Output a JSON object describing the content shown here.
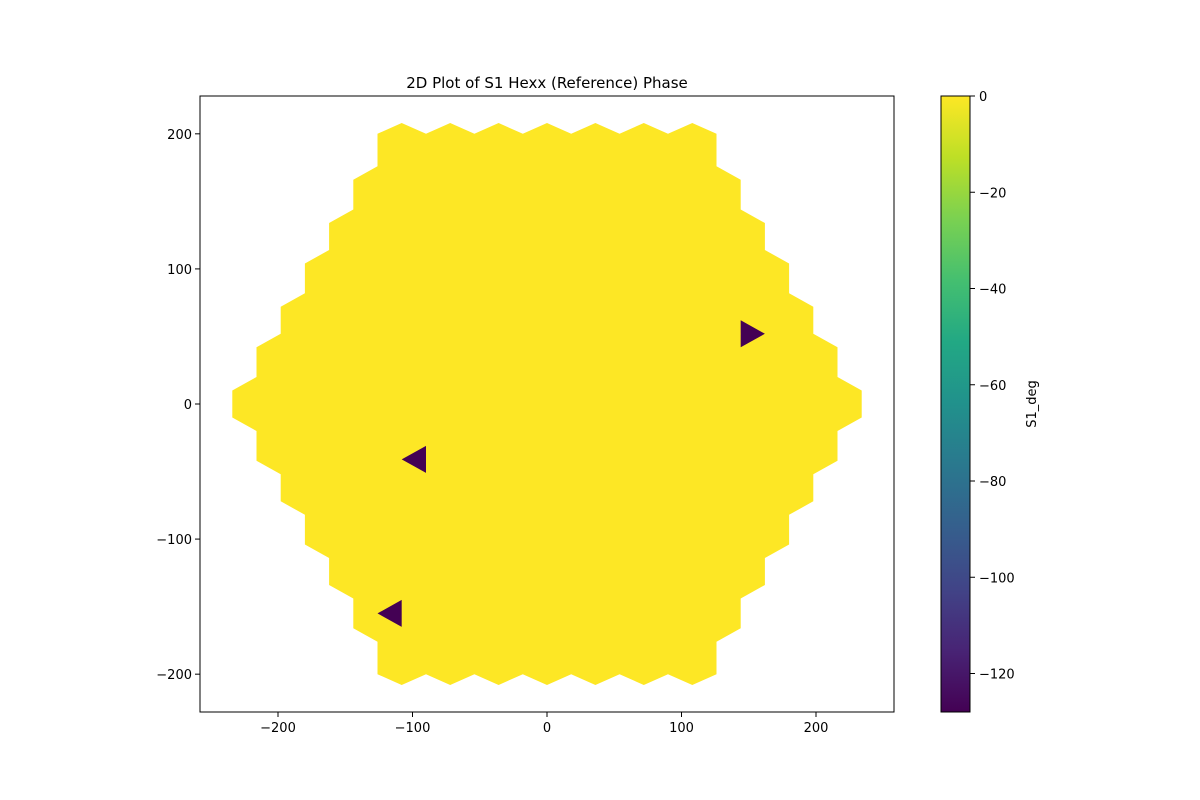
{
  "chart_data": {
    "type": "heatmap",
    "title": "2D Plot of S1 Hexx (Reference) Phase",
    "xlabel": "",
    "ylabel": "",
    "xlim": [
      -258,
      258
    ],
    "ylim": [
      -228,
      228
    ],
    "x_ticks": [
      -200,
      -100,
      0,
      100,
      200
    ],
    "y_ticks": [
      -200,
      -100,
      0,
      100,
      200
    ],
    "colorbar": {
      "label": "S1_deg",
      "range": [
        -128,
        0
      ],
      "ticks": [
        0,
        -20,
        -40,
        -60,
        -80,
        -100,
        -120
      ],
      "colormap": "viridis"
    },
    "region": {
      "shape": "hexagon of hexagonal cells",
      "value": 0,
      "color": "#fde725",
      "outline": [
        [
          -126,
          200
        ],
        [
          -108,
          208
        ],
        [
          -90,
          200
        ],
        [
          -72,
          208
        ],
        [
          -54,
          200
        ],
        [
          -36,
          208
        ],
        [
          -18,
          200
        ],
        [
          0,
          208
        ],
        [
          18,
          200
        ],
        [
          36,
          208
        ],
        [
          54,
          200
        ],
        [
          72,
          208
        ],
        [
          90,
          200
        ],
        [
          108,
          208
        ],
        [
          126,
          200
        ],
        [
          126,
          176
        ],
        [
          144,
          166
        ],
        [
          144,
          144
        ],
        [
          162,
          134
        ],
        [
          162,
          114
        ],
        [
          180,
          104
        ],
        [
          180,
          82
        ],
        [
          198,
          72
        ],
        [
          198,
          52
        ],
        [
          216,
          42
        ],
        [
          216,
          20
        ],
        [
          234,
          10
        ],
        [
          234,
          -10
        ],
        [
          216,
          -20
        ],
        [
          216,
          -42
        ],
        [
          198,
          -52
        ],
        [
          198,
          -72
        ],
        [
          180,
          -82
        ],
        [
          180,
          -104
        ],
        [
          162,
          -114
        ],
        [
          162,
          -134
        ],
        [
          144,
          -144
        ],
        [
          144,
          -166
        ],
        [
          126,
          -176
        ],
        [
          126,
          -200
        ],
        [
          108,
          -208
        ],
        [
          90,
          -200
        ],
        [
          72,
          -208
        ],
        [
          54,
          -200
        ],
        [
          36,
          -208
        ],
        [
          18,
          -200
        ],
        [
          0,
          -208
        ],
        [
          -18,
          -200
        ],
        [
          -36,
          -208
        ],
        [
          -54,
          -200
        ],
        [
          -72,
          -208
        ],
        [
          -90,
          -200
        ],
        [
          -108,
          -208
        ],
        [
          -126,
          -200
        ],
        [
          -126,
          -176
        ],
        [
          -144,
          -166
        ],
        [
          -144,
          -144
        ],
        [
          -162,
          -134
        ],
        [
          -162,
          -114
        ],
        [
          -180,
          -104
        ],
        [
          -180,
          -82
        ],
        [
          -198,
          -72
        ],
        [
          -198,
          -52
        ],
        [
          -216,
          -42
        ],
        [
          -216,
          -20
        ],
        [
          -234,
          -10
        ],
        [
          -234,
          10
        ],
        [
          -216,
          20
        ],
        [
          -216,
          42
        ],
        [
          -198,
          52
        ],
        [
          -198,
          72
        ],
        [
          -180,
          82
        ],
        [
          -180,
          104
        ],
        [
          -162,
          114
        ],
        [
          -162,
          134
        ],
        [
          -144,
          144
        ],
        [
          -144,
          166
        ],
        [
          -126,
          176
        ]
      ]
    },
    "points": [
      {
        "x": 152,
        "y": 52,
        "value": -128,
        "color": "#440154",
        "points": [
          [
            144,
            62
          ],
          [
            162,
            52
          ],
          [
            144,
            42
          ]
        ]
      },
      {
        "x": -100,
        "y": -41,
        "value": -128,
        "color": "#440154",
        "points": [
          [
            -90,
            -31
          ],
          [
            -108,
            -41
          ],
          [
            -90,
            -51
          ]
        ]
      },
      {
        "x": -117,
        "y": -155,
        "value": -128,
        "color": "#440154",
        "points": [
          [
            -108,
            -145
          ],
          [
            -126,
            -155
          ],
          [
            -108,
            -165
          ]
        ]
      }
    ]
  }
}
